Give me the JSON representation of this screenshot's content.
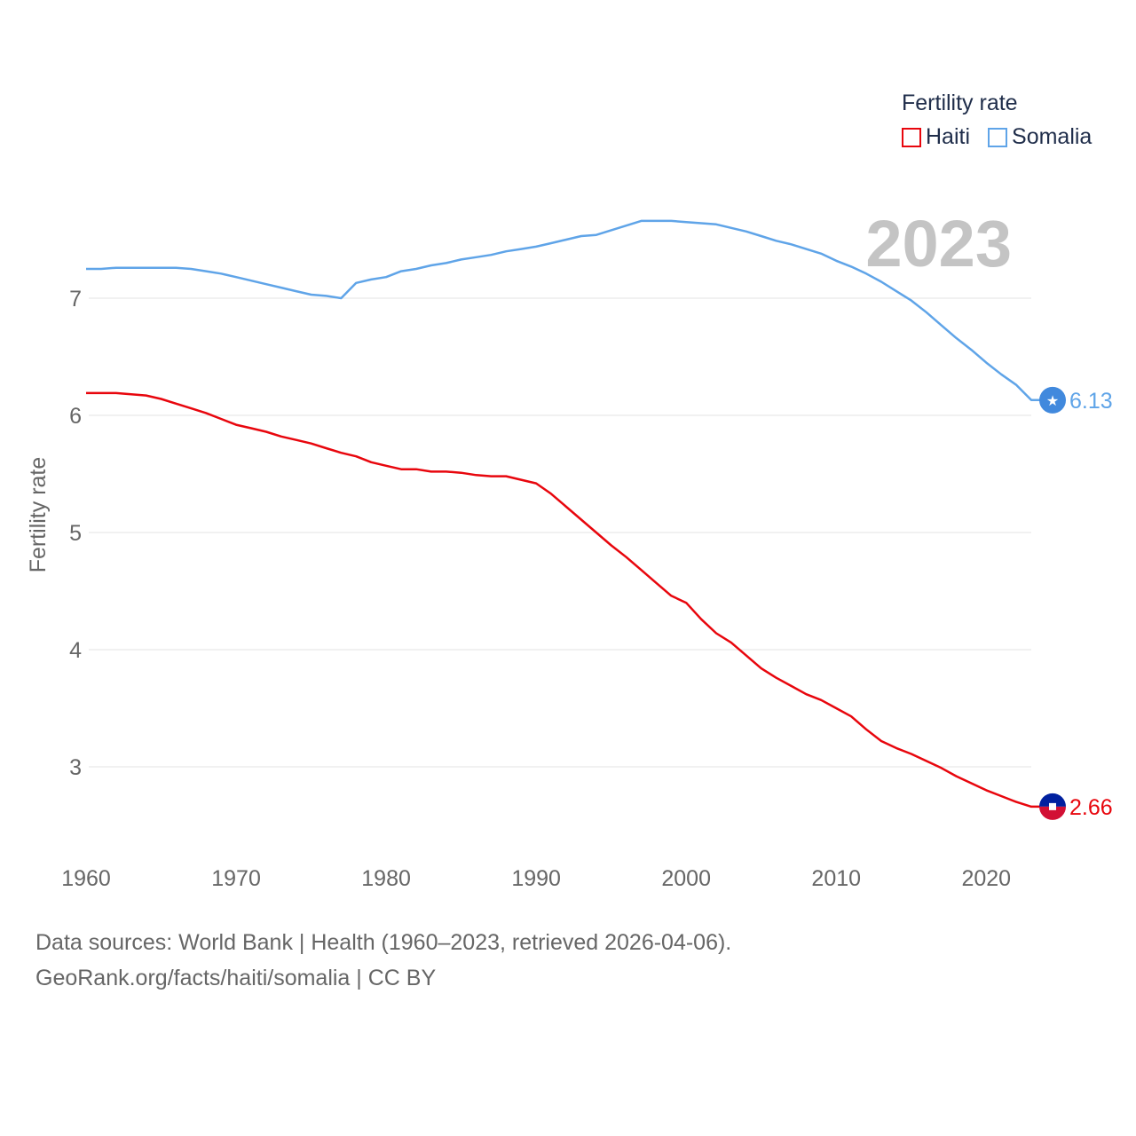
{
  "legend": {
    "title": "Fertility rate",
    "items": [
      {
        "label": "Haiti",
        "color": "#e8060d"
      },
      {
        "label": "Somalia",
        "color": "#5fa4e8"
      }
    ]
  },
  "source": {
    "line1": "Data sources: World Bank | Health (1960–2023, retrieved 2026-04-06).",
    "line2": "GeoRank.org/facts/haiti/somalia | CC BY"
  },
  "chart_data": {
    "type": "line",
    "title": "Fertility rate",
    "year_label": "2023",
    "xlabel": "",
    "ylabel": "Fertility rate",
    "xlim": [
      1960,
      2023
    ],
    "ylim": [
      2.4,
      7.8
    ],
    "xticks": [
      1960,
      1970,
      1980,
      1990,
      2000,
      2010,
      2020
    ],
    "yticks": [
      3,
      4,
      5,
      6,
      7
    ],
    "grid": true,
    "legend_position": "top-right",
    "x": [
      1960,
      1961,
      1962,
      1963,
      1964,
      1965,
      1966,
      1967,
      1968,
      1969,
      1970,
      1971,
      1972,
      1973,
      1974,
      1975,
      1976,
      1977,
      1978,
      1979,
      1980,
      1981,
      1982,
      1983,
      1984,
      1985,
      1986,
      1987,
      1988,
      1989,
      1990,
      1991,
      1992,
      1993,
      1994,
      1995,
      1996,
      1997,
      1998,
      1999,
      2000,
      2001,
      2002,
      2003,
      2004,
      2005,
      2006,
      2007,
      2008,
      2009,
      2010,
      2011,
      2012,
      2013,
      2014,
      2015,
      2016,
      2017,
      2018,
      2019,
      2020,
      2021,
      2022,
      2023
    ],
    "series": [
      {
        "name": "Haiti",
        "color": "#e8060d",
        "end_label": "2.66",
        "values": [
          6.19,
          6.19,
          6.19,
          6.18,
          6.17,
          6.14,
          6.1,
          6.06,
          6.02,
          5.97,
          5.92,
          5.89,
          5.86,
          5.82,
          5.79,
          5.76,
          5.72,
          5.68,
          5.65,
          5.6,
          5.57,
          5.54,
          5.54,
          5.52,
          5.52,
          5.51,
          5.49,
          5.48,
          5.48,
          5.45,
          5.42,
          5.33,
          5.22,
          5.11,
          5.0,
          4.89,
          4.79,
          4.68,
          4.57,
          4.46,
          4.4,
          4.26,
          4.14,
          4.06,
          3.95,
          3.84,
          3.76,
          3.69,
          3.62,
          3.57,
          3.5,
          3.43,
          3.32,
          3.22,
          3.16,
          3.11,
          3.05,
          2.99,
          2.92,
          2.86,
          2.8,
          2.75,
          2.7,
          2.66
        ]
      },
      {
        "name": "Somalia",
        "color": "#5fa4e8",
        "end_label": "6.13",
        "values": [
          7.25,
          7.25,
          7.26,
          7.26,
          7.26,
          7.26,
          7.26,
          7.25,
          7.23,
          7.21,
          7.18,
          7.15,
          7.12,
          7.09,
          7.06,
          7.03,
          7.02,
          7.0,
          7.13,
          7.16,
          7.18,
          7.23,
          7.25,
          7.28,
          7.3,
          7.33,
          7.35,
          7.37,
          7.4,
          7.42,
          7.44,
          7.47,
          7.5,
          7.53,
          7.54,
          7.58,
          7.62,
          7.66,
          7.66,
          7.66,
          7.65,
          7.64,
          7.63,
          7.6,
          7.57,
          7.53,
          7.49,
          7.46,
          7.42,
          7.38,
          7.32,
          7.27,
          7.21,
          7.14,
          7.06,
          6.98,
          6.88,
          6.77,
          6.66,
          6.56,
          6.45,
          6.35,
          6.26,
          6.13
        ]
      }
    ]
  }
}
